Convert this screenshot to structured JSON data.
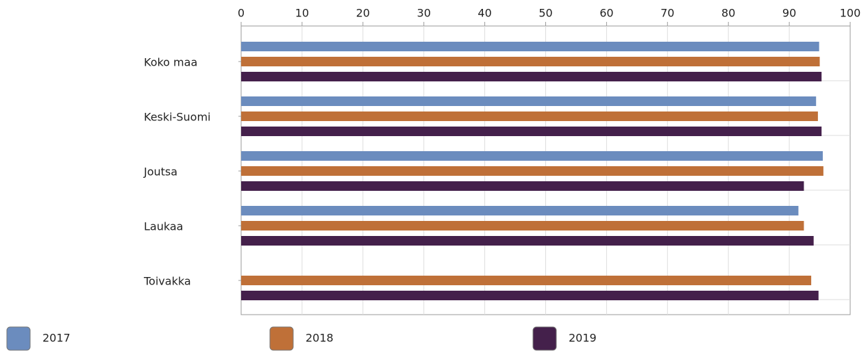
{
  "chart_data": {
    "type": "hbar",
    "categories": [
      "Koko maa",
      "Keski-Suomi",
      "Joutsa",
      "Laukaa",
      "Toivakka"
    ],
    "series": [
      {
        "name": "2017",
        "color": "#6b8cbe",
        "values": [
          94.9,
          94.4,
          95.5,
          91.5,
          null
        ]
      },
      {
        "name": "2018",
        "color": "#bf7038",
        "values": [
          95.0,
          94.7,
          95.6,
          92.4,
          93.6
        ]
      },
      {
        "name": "2019",
        "color": "#44204b",
        "values": [
          95.3,
          95.3,
          92.4,
          94.0,
          94.8
        ]
      }
    ],
    "xlim": [
      0,
      100
    ],
    "xticks": [
      0,
      10,
      20,
      30,
      40,
      50,
      60,
      70,
      80,
      90,
      100
    ],
    "grid": true
  }
}
